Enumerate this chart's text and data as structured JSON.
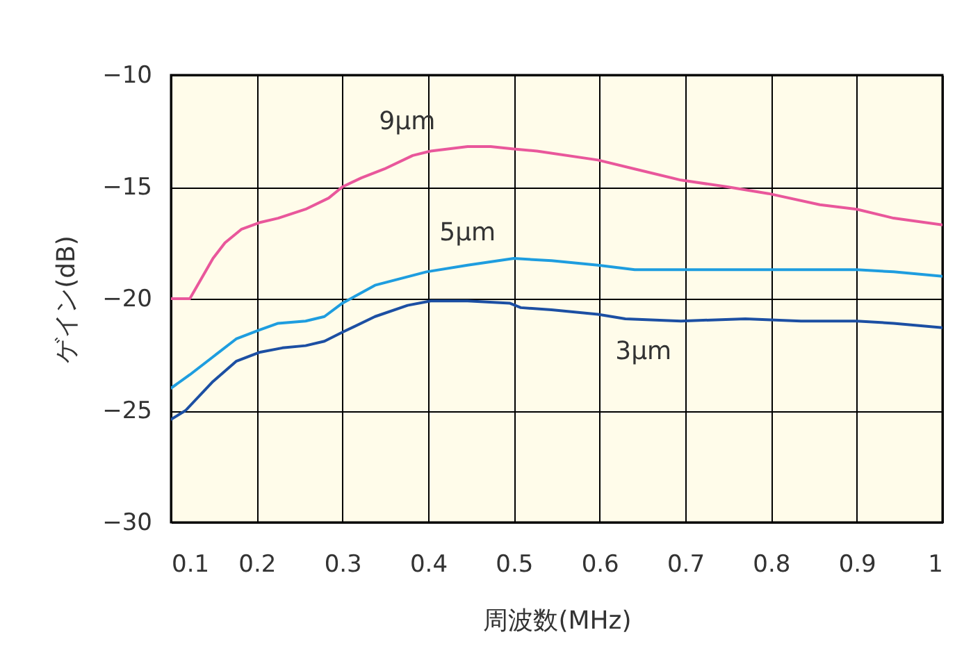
{
  "chart_data": {
    "type": "line",
    "xlabel": "周波数(MHz)",
    "ylabel": "ゲイン(dB)",
    "xlim": [
      0.1,
      1
    ],
    "ylim": [
      -30,
      -10
    ],
    "xticks": [
      0.1,
      0.2,
      0.3,
      0.4,
      0.5,
      0.6,
      0.7,
      0.8,
      0.9,
      1
    ],
    "yticks": [
      -30,
      -25,
      -20,
      -15,
      -10
    ],
    "grid": true,
    "legend": false,
    "marker": "none",
    "line_style": "solid",
    "series": [
      {
        "name": "9µm",
        "color": "#e9579b",
        "x": [
          0.1,
          0.122,
          0.149,
          0.163,
          0.182,
          0.203,
          0.225,
          0.257,
          0.284,
          0.3,
          0.322,
          0.349,
          0.382,
          0.403,
          0.446,
          0.473,
          0.498,
          0.527,
          0.598,
          0.641,
          0.695,
          0.749,
          0.797,
          0.857,
          0.9,
          0.943,
          1.0
        ],
        "values": [
          -20.0,
          -20.0,
          -18.2,
          -17.5,
          -16.9,
          -16.6,
          -16.4,
          -16.0,
          -15.5,
          -15.0,
          -14.6,
          -14.2,
          -13.6,
          -13.4,
          -13.2,
          -13.2,
          -13.3,
          -13.4,
          -13.8,
          -14.2,
          -14.7,
          -15.0,
          -15.3,
          -15.8,
          -16.0,
          -16.4,
          -16.7
        ]
      },
      {
        "name": "5µm",
        "color": "#1e9ddf",
        "x": [
          0.1,
          0.122,
          0.149,
          0.176,
          0.203,
          0.225,
          0.257,
          0.279,
          0.3,
          0.338,
          0.398,
          0.446,
          0.5,
          0.544,
          0.598,
          0.641,
          0.695,
          0.797,
          0.9,
          0.943,
          1.0
        ],
        "values": [
          -24.0,
          -23.4,
          -22.6,
          -21.8,
          -21.4,
          -21.1,
          -21.0,
          -20.8,
          -20.2,
          -19.4,
          -18.8,
          -18.5,
          -18.2,
          -18.3,
          -18.5,
          -18.7,
          -18.7,
          -18.7,
          -18.7,
          -18.8,
          -19.0
        ]
      },
      {
        "name": "3µm",
        "color": "#1c4fa3",
        "x": [
          0.1,
          0.117,
          0.149,
          0.176,
          0.203,
          0.23,
          0.257,
          0.279,
          0.3,
          0.338,
          0.376,
          0.403,
          0.446,
          0.495,
          0.508,
          0.544,
          0.598,
          0.63,
          0.695,
          0.77,
          0.835,
          0.9,
          0.943,
          1.0
        ],
        "values": [
          -25.4,
          -25.0,
          -23.7,
          -22.8,
          -22.4,
          -22.2,
          -22.1,
          -21.9,
          -21.5,
          -20.8,
          -20.3,
          -20.1,
          -20.1,
          -20.2,
          -20.4,
          -20.5,
          -20.7,
          -20.9,
          -21.0,
          -20.9,
          -21.0,
          -21.0,
          -21.1,
          -21.3
        ]
      }
    ]
  }
}
